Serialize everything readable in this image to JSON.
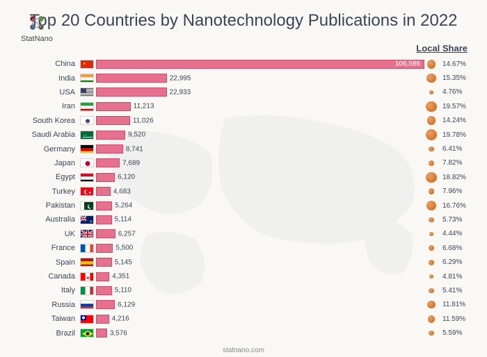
{
  "logo": {
    "name": "StatNano"
  },
  "title": "Top 20 Countries by Nanotechnology Publications in 2022",
  "local_share_header": "Local Share",
  "footer": "statnano.com",
  "chart": {
    "type": "bar",
    "x_max": 106586,
    "bar_color": "#e6718e",
    "bar_border": "#c74b6b",
    "bubble_color": "#d2691e",
    "background_color": "#faf8f5",
    "title_fontsize": 24,
    "label_fontsize": 11,
    "value_fontsize": 10,
    "rows": [
      {
        "country": "China",
        "flag": "cn",
        "value": 106586,
        "value_label": "106,586",
        "share": 14.67,
        "share_label": "14.67%"
      },
      {
        "country": "India",
        "flag": "in",
        "value": 22995,
        "value_label": "22,995",
        "share": 15.35,
        "share_label": "15.35%"
      },
      {
        "country": "USA",
        "flag": "us",
        "value": 22933,
        "value_label": "22,933",
        "share": 4.76,
        "share_label": "4.76%"
      },
      {
        "country": "Iran",
        "flag": "ir",
        "value": 11213,
        "value_label": "11,213",
        "share": 19.57,
        "share_label": "19.57%"
      },
      {
        "country": "South Korea",
        "flag": "kr",
        "value": 11026,
        "value_label": "11,026",
        "share": 14.24,
        "share_label": "14.24%"
      },
      {
        "country": "Saudi Arabia",
        "flag": "sa",
        "value": 9520,
        "value_label": "9,520",
        "share": 19.78,
        "share_label": "19.78%"
      },
      {
        "country": "Germany",
        "flag": "de",
        "value": 8741,
        "value_label": "8,741",
        "share": 6.41,
        "share_label": "6.41%"
      },
      {
        "country": "Japan",
        "flag": "jp",
        "value": 7689,
        "value_label": "7,689",
        "share": 7.82,
        "share_label": "7.82%"
      },
      {
        "country": "Egypt",
        "flag": "eg",
        "value": 6120,
        "value_label": "6,120",
        "share": 18.82,
        "share_label": "18.82%"
      },
      {
        "country": "Turkey",
        "flag": "tr",
        "value": 4683,
        "value_label": "4,683",
        "share": 7.96,
        "share_label": "7.96%"
      },
      {
        "country": "Pakistan",
        "flag": "pk",
        "value": 5264,
        "value_label": "5,264",
        "share": 16.76,
        "share_label": "16.76%"
      },
      {
        "country": "Australia",
        "flag": "au",
        "value": 5114,
        "value_label": "5,114",
        "share": 5.73,
        "share_label": "5.73%"
      },
      {
        "country": "UK",
        "flag": "gb",
        "value": 6257,
        "value_label": "6,257",
        "share": 4.44,
        "share_label": "4.44%"
      },
      {
        "country": "France",
        "flag": "fr",
        "value": 5500,
        "value_label": "5,500",
        "share": 6.68,
        "share_label": "6.68%"
      },
      {
        "country": "Spain",
        "flag": "es",
        "value": 5145,
        "value_label": "5,145",
        "share": 6.29,
        "share_label": "6.29%"
      },
      {
        "country": "Canada",
        "flag": "ca",
        "value": 4351,
        "value_label": "4,351",
        "share": 4.81,
        "share_label": "4.81%"
      },
      {
        "country": "Italy",
        "flag": "it",
        "value": 5110,
        "value_label": "5,110",
        "share": 5.41,
        "share_label": "5.41%"
      },
      {
        "country": "Russia",
        "flag": "ru",
        "value": 6129,
        "value_label": "6,129",
        "share": 11.81,
        "share_label": "11.81%"
      },
      {
        "country": "Taiwan",
        "flag": "tw",
        "value": 4216,
        "value_label": "4,216",
        "share": 11.59,
        "share_label": "11.59%"
      },
      {
        "country": "Brazil",
        "flag": "br",
        "value": 3576,
        "value_label": "3,576",
        "share": 5.59,
        "share_label": "5.59%"
      }
    ]
  },
  "flags": {
    "cn": {
      "bg": "#de2910",
      "extra": "star"
    },
    "in": {
      "stripes_h": [
        "#ff9933",
        "#ffffff",
        "#138808"
      ]
    },
    "us": {
      "bg": "#b22234",
      "canton": "#3c3b6e"
    },
    "ir": {
      "stripes_h": [
        "#239f40",
        "#ffffff",
        "#da0000"
      ]
    },
    "kr": {
      "bg": "#ffffff",
      "circle": true
    },
    "sa": {
      "bg": "#006c35"
    },
    "de": {
      "stripes_h": [
        "#000000",
        "#dd0000",
        "#ffce00"
      ]
    },
    "jp": {
      "bg": "#ffffff",
      "dot": "#bc002d"
    },
    "eg": {
      "stripes_h": [
        "#ce1126",
        "#ffffff",
        "#000000"
      ]
    },
    "tr": {
      "bg": "#e30a17"
    },
    "pk": {
      "bg": "#01411c",
      "left": "#ffffff"
    },
    "au": {
      "bg": "#012169"
    },
    "gb": {
      "bg": "#012169"
    },
    "fr": {
      "stripes_v": [
        "#0055a4",
        "#ffffff",
        "#ef4135"
      ]
    },
    "es": {
      "stripes_h": [
        "#aa151b",
        "#f1bf00",
        "#aa151b"
      ]
    },
    "ca": {
      "stripes_v": [
        "#ff0000",
        "#ffffff",
        "#ff0000"
      ]
    },
    "it": {
      "stripes_v": [
        "#009246",
        "#ffffff",
        "#ce2b37"
      ]
    },
    "ru": {
      "stripes_h": [
        "#ffffff",
        "#0039a6",
        "#d52b1e"
      ]
    },
    "tw": {
      "bg": "#fe0000",
      "canton": "#000095"
    },
    "br": {
      "bg": "#009b3a"
    }
  }
}
